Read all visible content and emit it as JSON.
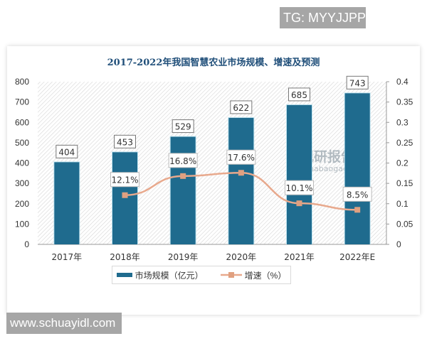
{
  "watermarks": {
    "top": "TG: MYYJJPP",
    "bottom": "www.schuayidl.com",
    "chart_source": "观研报告网",
    "chart_source_url": "chinabaogao.com"
  },
  "colors": {
    "bar": "#1f6b8e",
    "line": "#e8a98d",
    "marker": "#e0a080",
    "title": "#1f4e79"
  },
  "legend": {
    "bar_label": "市场规模（亿元）",
    "line_label": "增速（%）"
  },
  "chart_data": {
    "type": "bar",
    "title": "2017-2022年我国智慧农业市场规模、增速及预测",
    "categories": [
      "2017年",
      "2018年",
      "2019年",
      "2020年",
      "2021年",
      "2022年E"
    ],
    "series": [
      {
        "name": "市场规模（亿元）",
        "type": "bar",
        "axis": "left",
        "values": [
          404,
          453,
          529,
          622,
          685,
          743
        ],
        "labels": [
          "404",
          "453",
          "529",
          "622",
          "685",
          "743"
        ]
      },
      {
        "name": "增速（%）",
        "type": "line",
        "axis": "right",
        "values": [
          null,
          0.121,
          0.168,
          0.176,
          0.101,
          0.085
        ],
        "labels": [
          "",
          "12.1%",
          "16.8%",
          "17.6%",
          "10.1%",
          "8.5%"
        ]
      }
    ],
    "y_left": {
      "ylim": [
        0,
        800
      ],
      "ticks": [
        "0",
        "100",
        "200",
        "300",
        "400",
        "500",
        "600",
        "700",
        "800"
      ]
    },
    "y_right": {
      "ylim": [
        0,
        0.4
      ],
      "ticks": [
        "0",
        "0.05",
        "0.1",
        "0.15",
        "0.2",
        "0.25",
        "0.3",
        "0.35",
        "0.4"
      ]
    },
    "xlabel": "",
    "ylabel": "",
    "grid": false,
    "legend_position": "bottom"
  }
}
